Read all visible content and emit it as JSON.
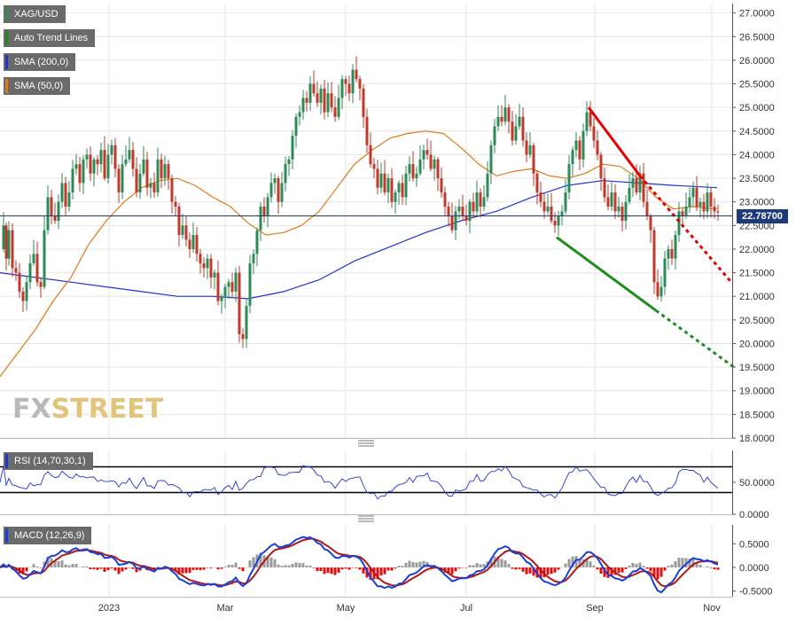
{
  "chart_data": [
    {
      "type": "candlestick",
      "symbol": "XAG/USD",
      "last_price": "22.78700",
      "y_ticks": [
        "18.0000",
        "18.5000",
        "19.0000",
        "19.5000",
        "20.0000",
        "20.5000",
        "21.0000",
        "21.5000",
        "22.0000",
        "22.5000",
        "23.0000",
        "23.5000",
        "24.0000",
        "24.5000",
        "25.0000",
        "25.5000",
        "26.0000",
        "26.5000",
        "27.0000"
      ],
      "ylim": [
        18.0,
        27.2
      ],
      "x_ticks": [
        "2023",
        "Mar",
        "May",
        "Jul",
        "Sep",
        "Nov"
      ],
      "legend": [
        "XAG/USD",
        "Auto Trend Lines",
        "SMA (200,0)",
        "SMA (50,0)"
      ],
      "close_path": [
        [
          0,
          22.0
        ],
        [
          4,
          22.5
        ],
        [
          7,
          21.8
        ],
        [
          10,
          22.4
        ],
        [
          14,
          21.6
        ],
        [
          18,
          21.5
        ],
        [
          22,
          21.1
        ],
        [
          26,
          20.9
        ],
        [
          30,
          21.3
        ],
        [
          34,
          21.7
        ],
        [
          38,
          21.9
        ],
        [
          42,
          21.3
        ],
        [
          46,
          21.2
        ],
        [
          50,
          22.4
        ],
        [
          54,
          23.1
        ],
        [
          58,
          22.7
        ],
        [
          62,
          22.6
        ],
        [
          66,
          23.0
        ],
        [
          70,
          23.4
        ],
        [
          74,
          22.9
        ],
        [
          78,
          23.2
        ],
        [
          82,
          23.7
        ],
        [
          86,
          23.8
        ],
        [
          90,
          23.4
        ],
        [
          94,
          23.9
        ],
        [
          98,
          24.0
        ],
        [
          102,
          23.6
        ],
        [
          106,
          23.9
        ],
        [
          110,
          23.8
        ],
        [
          114,
          24.1
        ],
        [
          118,
          23.5
        ],
        [
          122,
          24.0
        ],
        [
          126,
          24.2
        ],
        [
          130,
          23.7
        ],
        [
          134,
          23.2
        ],
        [
          138,
          23.8
        ],
        [
          142,
          23.9
        ],
        [
          146,
          24.1
        ],
        [
          150,
          23.7
        ],
        [
          154,
          23.2
        ],
        [
          158,
          23.6
        ],
        [
          162,
          23.9
        ],
        [
          166,
          23.3
        ],
        [
          170,
          23.4
        ],
        [
          174,
          23.2
        ],
        [
          178,
          23.9
        ],
        [
          182,
          23.5
        ],
        [
          186,
          23.8
        ],
        [
          190,
          23.5
        ],
        [
          194,
          23.0
        ],
        [
          198,
          22.9
        ],
        [
          202,
          22.3
        ],
        [
          206,
          22.5
        ],
        [
          210,
          22.2
        ],
        [
          214,
          22.0
        ],
        [
          218,
          22.3
        ],
        [
          222,
          21.9
        ],
        [
          226,
          21.7
        ],
        [
          230,
          21.6
        ],
        [
          234,
          21.8
        ],
        [
          238,
          21.4
        ],
        [
          242,
          21.5
        ],
        [
          246,
          20.9
        ],
        [
          250,
          21.0
        ],
        [
          254,
          21.2
        ],
        [
          258,
          21.3
        ],
        [
          262,
          21.1
        ],
        [
          266,
          21.5
        ],
        [
          270,
          20.2
        ],
        [
          274,
          20.1
        ],
        [
          278,
          20.8
        ],
        [
          282,
          21.7
        ],
        [
          286,
          21.9
        ],
        [
          290,
          22.4
        ],
        [
          294,
          22.9
        ],
        [
          298,
          22.7
        ],
        [
          302,
          23.1
        ],
        [
          306,
          23.4
        ],
        [
          310,
          23.5
        ],
        [
          314,
          23.0
        ],
        [
          318,
          23.4
        ],
        [
          322,
          23.8
        ],
        [
          326,
          23.9
        ],
        [
          330,
          24.4
        ],
        [
          334,
          24.8
        ],
        [
          338,
          24.9
        ],
        [
          342,
          25.2
        ],
        [
          346,
          25.1
        ],
        [
          350,
          25.5
        ],
        [
          354,
          25.3
        ],
        [
          358,
          25.1
        ],
        [
          362,
          25.4
        ],
        [
          366,
          24.9
        ],
        [
          370,
          25.3
        ],
        [
          374,
          25.0
        ],
        [
          378,
          24.8
        ],
        [
          382,
          25.2
        ],
        [
          386,
          25.6
        ],
        [
          390,
          25.5
        ],
        [
          394,
          25.3
        ],
        [
          398,
          25.8
        ],
        [
          402,
          25.6
        ],
        [
          406,
          25.4
        ],
        [
          410,
          24.8
        ],
        [
          414,
          24.2
        ],
        [
          418,
          23.8
        ],
        [
          422,
          23.7
        ],
        [
          426,
          23.3
        ],
        [
          430,
          23.6
        ],
        [
          434,
          23.2
        ],
        [
          438,
          23.5
        ],
        [
          442,
          23.0
        ],
        [
          446,
          23.2
        ],
        [
          450,
          23.4
        ],
        [
          454,
          23.1
        ],
        [
          458,
          23.6
        ],
        [
          462,
          23.8
        ],
        [
          466,
          23.5
        ],
        [
          470,
          23.6
        ],
        [
          474,
          23.9
        ],
        [
          478,
          24.1
        ],
        [
          482,
          24.0
        ],
        [
          486,
          23.7
        ],
        [
          490,
          23.9
        ],
        [
          494,
          23.5
        ],
        [
          498,
          23.2
        ],
        [
          502,
          22.9
        ],
        [
          506,
          22.7
        ],
        [
          510,
          22.4
        ],
        [
          514,
          22.8
        ],
        [
          518,
          22.9
        ],
        [
          522,
          22.7
        ],
        [
          526,
          22.6
        ],
        [
          530,
          23.0
        ],
        [
          534,
          22.8
        ],
        [
          538,
          23.2
        ],
        [
          542,
          22.9
        ],
        [
          546,
          23.1
        ],
        [
          550,
          23.6
        ],
        [
          554,
          24.2
        ],
        [
          558,
          24.6
        ],
        [
          562,
          24.8
        ],
        [
          566,
          24.7
        ],
        [
          570,
          25.0
        ],
        [
          574,
          24.7
        ],
        [
          578,
          24.3
        ],
        [
          582,
          24.6
        ],
        [
          586,
          24.8
        ],
        [
          590,
          24.3
        ],
        [
          594,
          24.0
        ],
        [
          598,
          24.2
        ],
        [
          602,
          23.6
        ],
        [
          606,
          23.2
        ],
        [
          610,
          23.0
        ],
        [
          614,
          22.8
        ],
        [
          618,
          22.9
        ],
        [
          622,
          22.6
        ],
        [
          626,
          22.5
        ],
        [
          630,
          22.7
        ],
        [
          634,
          22.8
        ],
        [
          638,
          23.2
        ],
        [
          642,
          23.8
        ],
        [
          646,
          24.1
        ],
        [
          650,
          24.3
        ],
        [
          654,
          23.9
        ],
        [
          658,
          24.5
        ],
        [
          662,
          24.9
        ],
        [
          666,
          24.6
        ],
        [
          670,
          24.3
        ],
        [
          674,
          24.0
        ],
        [
          678,
          23.5
        ],
        [
          682,
          23.1
        ],
        [
          686,
          22.9
        ],
        [
          690,
          23.2
        ],
        [
          694,
          22.8
        ],
        [
          698,
          22.9
        ],
        [
          702,
          22.6
        ],
        [
          706,
          23.0
        ],
        [
          710,
          23.3
        ],
        [
          714,
          23.5
        ],
        [
          718,
          23.2
        ],
        [
          722,
          23.6
        ],
        [
          726,
          23.0
        ],
        [
          730,
          22.7
        ],
        [
          734,
          22.4
        ],
        [
          738,
          21.3
        ],
        [
          742,
          21.0
        ],
        [
          746,
          21.2
        ],
        [
          750,
          21.8
        ],
        [
          754,
          22.0
        ],
        [
          758,
          21.8
        ],
        [
          762,
          22.3
        ],
        [
          766,
          22.8
        ],
        [
          770,
          22.7
        ],
        [
          774,
          22.9
        ],
        [
          778,
          23.1
        ],
        [
          782,
          23.3
        ],
        [
          786,
          22.9
        ],
        [
          790,
          23.0
        ],
        [
          794,
          22.8
        ],
        [
          798,
          23.2
        ],
        [
          802,
          22.9
        ],
        [
          806,
          22.8
        ],
        [
          810,
          22.79
        ]
      ],
      "sma_200": [
        [
          0,
          21.5
        ],
        [
          40,
          21.4
        ],
        [
          80,
          21.3
        ],
        [
          120,
          21.2
        ],
        [
          160,
          21.1
        ],
        [
          200,
          21.0
        ],
        [
          240,
          21.0
        ],
        [
          280,
          20.95
        ],
        [
          320,
          21.1
        ],
        [
          360,
          21.35
        ],
        [
          400,
          21.75
        ],
        [
          440,
          22.05
        ],
        [
          480,
          22.35
        ],
        [
          520,
          22.6
        ],
        [
          560,
          22.8
        ],
        [
          600,
          23.1
        ],
        [
          640,
          23.35
        ],
        [
          680,
          23.45
        ],
        [
          720,
          23.4
        ],
        [
          760,
          23.35
        ],
        [
          809,
          23.3
        ]
      ],
      "sma_50": [
        [
          0,
          19.3
        ],
        [
          20,
          19.8
        ],
        [
          40,
          20.3
        ],
        [
          60,
          20.9
        ],
        [
          80,
          21.4
        ],
        [
          100,
          22.1
        ],
        [
          120,
          22.6
        ],
        [
          140,
          23.0
        ],
        [
          160,
          23.3
        ],
        [
          180,
          23.45
        ],
        [
          200,
          23.5
        ],
        [
          220,
          23.35
        ],
        [
          240,
          23.1
        ],
        [
          260,
          22.9
        ],
        [
          280,
          22.55
        ],
        [
          300,
          22.3
        ],
        [
          320,
          22.35
        ],
        [
          340,
          22.5
        ],
        [
          360,
          22.8
        ],
        [
          380,
          23.3
        ],
        [
          400,
          23.8
        ],
        [
          420,
          24.1
        ],
        [
          440,
          24.35
        ],
        [
          460,
          24.45
        ],
        [
          480,
          24.5
        ],
        [
          500,
          24.45
        ],
        [
          520,
          24.15
        ],
        [
          540,
          23.8
        ],
        [
          560,
          23.55
        ],
        [
          580,
          23.65
        ],
        [
          600,
          23.7
        ],
        [
          620,
          23.55
        ],
        [
          640,
          23.5
        ],
        [
          660,
          23.6
        ],
        [
          680,
          23.8
        ],
        [
          700,
          23.75
        ],
        [
          720,
          23.5
        ],
        [
          740,
          23.1
        ],
        [
          760,
          22.85
        ],
        [
          780,
          22.9
        ],
        [
          809,
          22.85
        ]
      ],
      "trend_lines": [
        {
          "color": "#e60000",
          "from": [
            664,
            25.0
          ],
          "to": [
            722,
            23.55
          ],
          "dashed_to": [
            825,
            21.3
          ]
        },
        {
          "color": "#1e8c1e",
          "from": [
            628,
            22.25
          ],
          "to": [
            740,
            20.7
          ],
          "dashed_to": [
            828,
            19.5
          ]
        }
      ]
    },
    {
      "type": "line",
      "name": "RSI",
      "legend": "RSI (14,70,30,1)",
      "y_ticks": [
        "0.0000",
        "50.0000"
      ],
      "levels": [
        70,
        30
      ],
      "ylim": [
        0,
        100
      ]
    },
    {
      "type": "bar",
      "name": "MACD",
      "legend": "MACD (12,26,9)",
      "y_ticks": [
        "-0.5000",
        "0.0000",
        "0.5000"
      ],
      "ylim": [
        -0.62,
        0.9
      ]
    }
  ],
  "watermark": {
    "part1": "FX",
    "part2": "STREET"
  }
}
